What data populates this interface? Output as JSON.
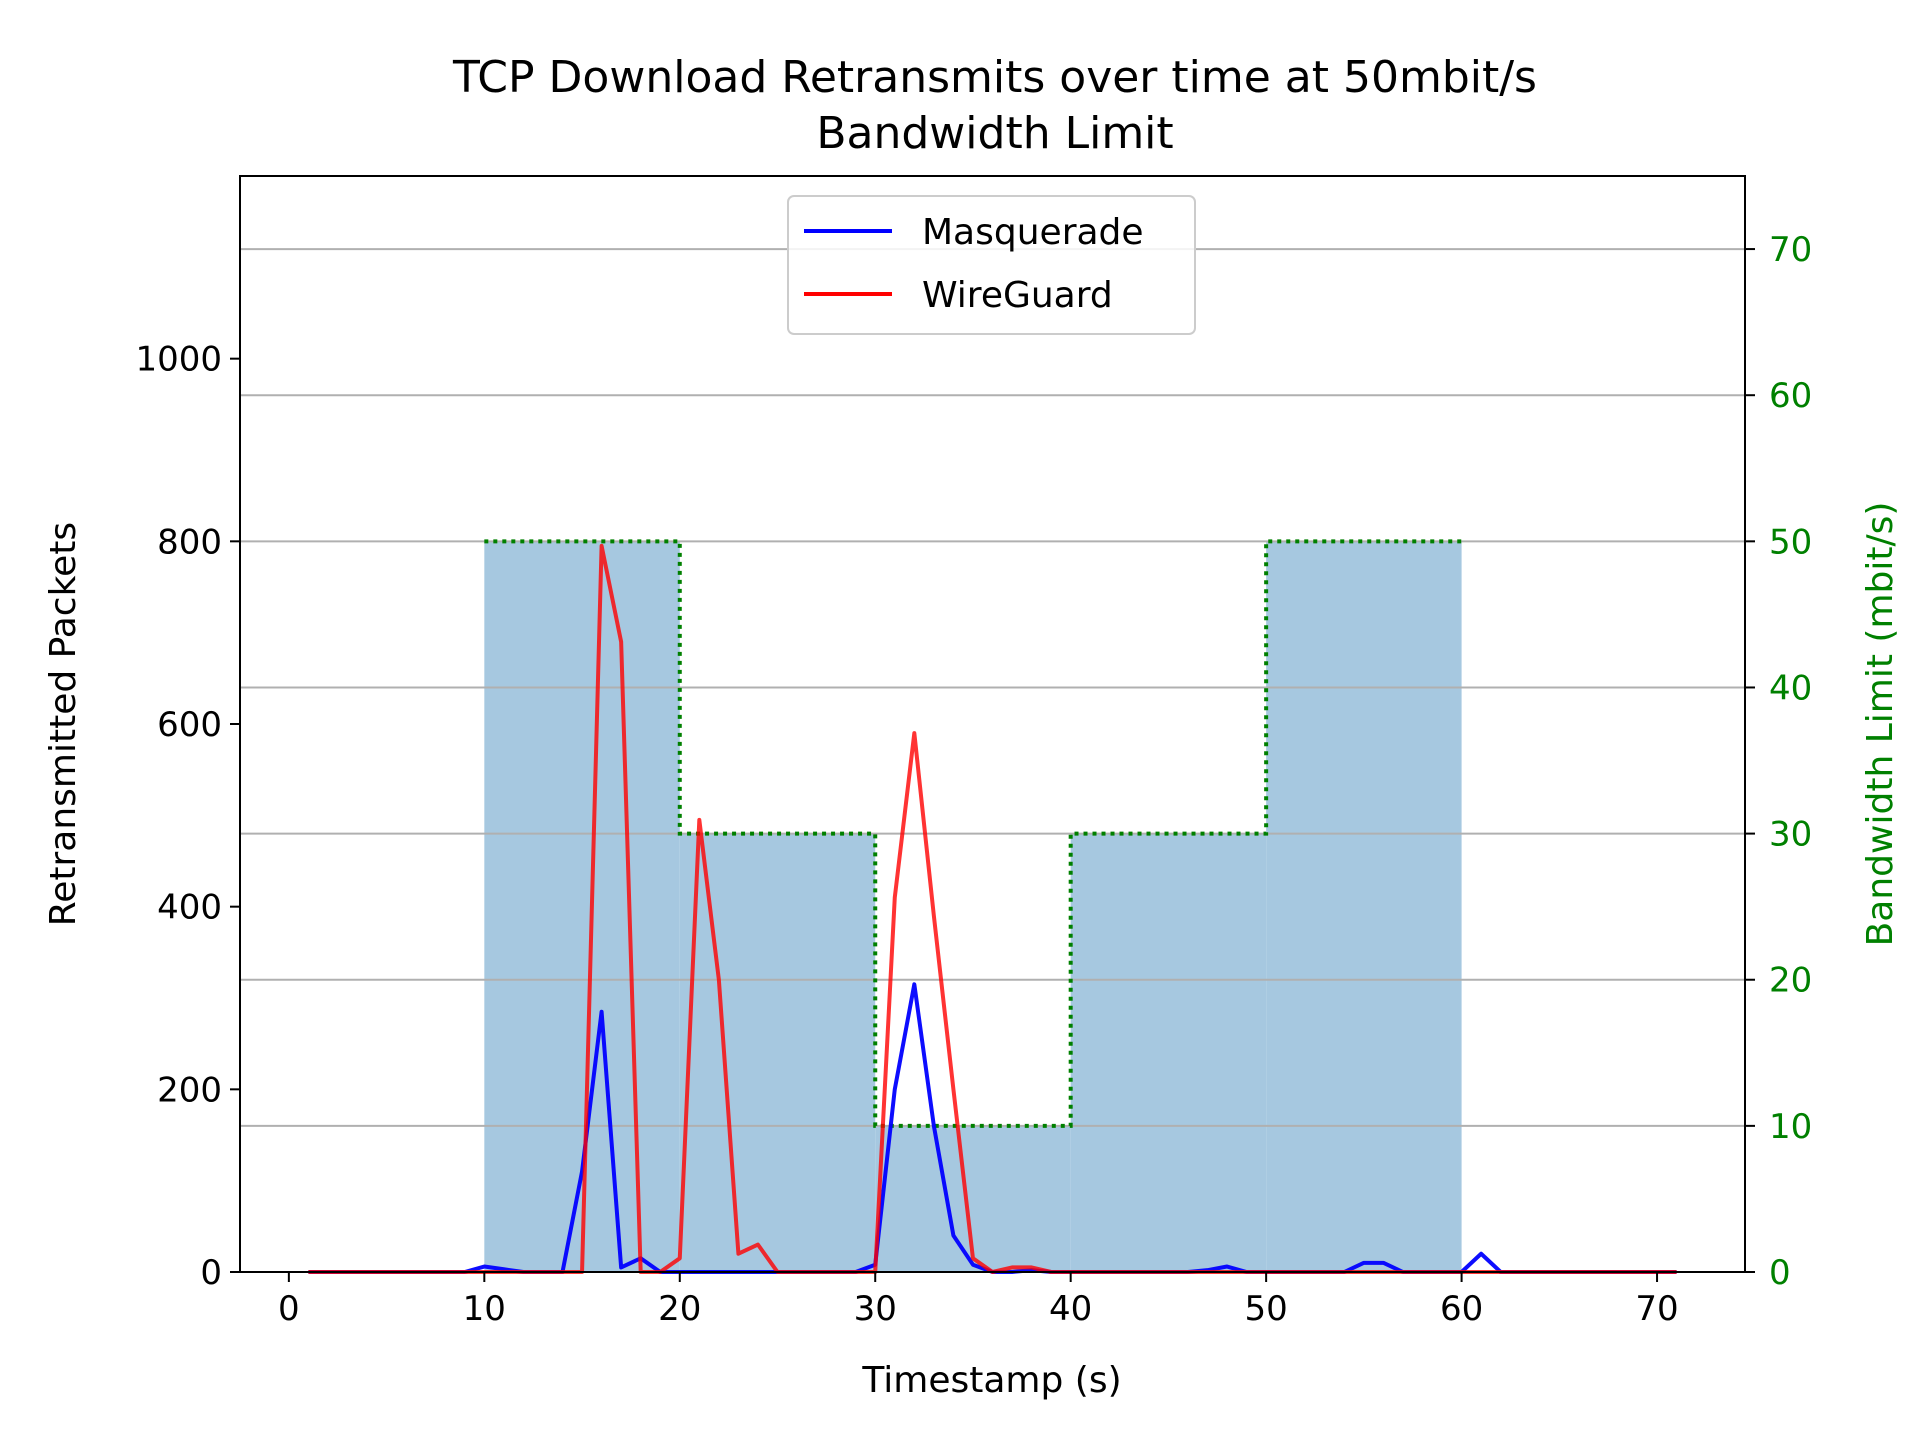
{
  "chart_data": {
    "type": "line",
    "title_line1": "TCP Download Retransmits over time at 50mbit/s",
    "title_line2": "Bandwidth Limit",
    "xlabel": "Timestamp (s)",
    "ylabel": "Retransmitted Packets",
    "y2label": "Bandwidth Limit (mbit/s)",
    "xlim": [
      -2.5,
      74.5
    ],
    "ylim": [
      0,
      1200
    ],
    "y2lim": [
      0,
      75
    ],
    "xticks": [
      0,
      10,
      20,
      30,
      40,
      50,
      60,
      70
    ],
    "yticks": [
      0,
      200,
      400,
      600,
      800,
      1000
    ],
    "y2ticks": [
      0,
      10,
      20,
      30,
      40,
      50,
      60,
      70
    ],
    "grid": "horizontal lines at right-axis ticks",
    "legend_position": "upper-center",
    "series": [
      {
        "name": "Masquerade",
        "color": "#0000ff",
        "x": [
          1,
          2,
          3,
          4,
          5,
          6,
          7,
          8,
          9,
          10,
          11,
          12,
          13,
          14,
          15,
          16,
          17,
          18,
          19,
          20,
          21,
          22,
          23,
          24,
          25,
          26,
          27,
          28,
          29,
          30,
          31,
          32,
          33,
          34,
          35,
          36,
          37,
          38,
          39,
          40,
          41,
          42,
          43,
          44,
          45,
          46,
          47,
          48,
          49,
          50,
          51,
          52,
          53,
          54,
          55,
          56,
          57,
          58,
          59,
          60,
          61,
          62,
          63,
          64,
          65,
          66,
          67,
          68,
          69,
          70,
          71
        ],
        "y": [
          0,
          0,
          0,
          0,
          0,
          0,
          0,
          0,
          0,
          6,
          3,
          0,
          0,
          0,
          110,
          285,
          5,
          15,
          0,
          0,
          0,
          0,
          0,
          0,
          0,
          0,
          0,
          0,
          0,
          8,
          200,
          315,
          160,
          40,
          8,
          0,
          0,
          2,
          0,
          0,
          0,
          0,
          0,
          0,
          0,
          0,
          2,
          6,
          0,
          0,
          0,
          0,
          0,
          0,
          10,
          10,
          0,
          0,
          0,
          0,
          20,
          0,
          0,
          0,
          0,
          0,
          0,
          0,
          0,
          0,
          0
        ]
      },
      {
        "name": "WireGuard",
        "color": "#ff0000",
        "x": [
          1,
          2,
          3,
          4,
          5,
          6,
          7,
          8,
          9,
          10,
          11,
          12,
          13,
          14,
          15,
          16,
          17,
          18,
          19,
          20,
          21,
          22,
          23,
          24,
          25,
          26,
          27,
          28,
          29,
          30,
          31,
          32,
          33,
          34,
          35,
          36,
          37,
          38,
          39,
          40,
          41,
          42,
          43,
          44,
          45,
          46,
          47,
          48,
          49,
          50,
          51,
          52,
          53,
          54,
          55,
          56,
          57,
          58,
          59,
          60,
          61,
          62,
          63,
          64,
          65,
          66,
          67,
          68,
          69,
          70,
          71
        ],
        "y": [
          0,
          0,
          0,
          0,
          0,
          0,
          0,
          0,
          0,
          0,
          0,
          0,
          0,
          0,
          0,
          795,
          690,
          0,
          0,
          15,
          495,
          320,
          20,
          30,
          0,
          0,
          0,
          0,
          0,
          0,
          410,
          590,
          390,
          200,
          15,
          0,
          5,
          5,
          0,
          0,
          0,
          0,
          0,
          0,
          0,
          0,
          0,
          0,
          0,
          0,
          0,
          0,
          0,
          0,
          0,
          0,
          0,
          0,
          0,
          0,
          0,
          0,
          0,
          0,
          0,
          0,
          0,
          0,
          0,
          0,
          0
        ]
      }
    ],
    "bandwidth_limit": {
      "color": "#008000",
      "fill_color": "#a6c8e0",
      "steps": [
        {
          "start": 10,
          "end": 20,
          "value": 50
        },
        {
          "start": 20,
          "end": 30,
          "value": 30
        },
        {
          "start": 30,
          "end": 40,
          "value": 10
        },
        {
          "start": 40,
          "end": 50,
          "value": 30
        },
        {
          "start": 50,
          "end": 60,
          "value": 50
        }
      ]
    }
  }
}
